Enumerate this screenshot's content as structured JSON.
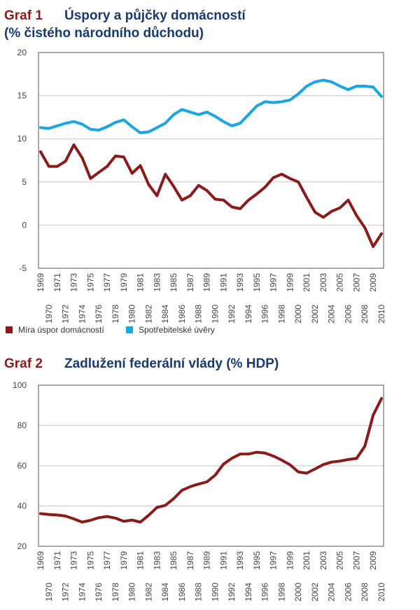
{
  "chart_data": [
    {
      "type": "line",
      "number": "Graf 1",
      "title": "Úspory a půjčky domácností",
      "subtitle": "(% čistého národního důchodu)",
      "ylim": [
        -5,
        20
      ],
      "yticks": [
        -5,
        0,
        5,
        10,
        15,
        20
      ],
      "grid": true,
      "x": [
        1969,
        1970,
        1971,
        1972,
        1973,
        1974,
        1975,
        1976,
        1977,
        1978,
        1979,
        1980,
        1981,
        1982,
        1983,
        1984,
        1985,
        1986,
        1987,
        1988,
        1989,
        1990,
        1991,
        1992,
        1993,
        1994,
        1995,
        1996,
        1997,
        1998,
        1999,
        2000,
        2001,
        2002,
        2003,
        2004,
        2005,
        2006,
        2007,
        2008,
        2009,
        2010
      ],
      "legend_position": "bottom",
      "series": [
        {
          "name": "Míra úspor domácností",
          "color": "#8a1b1b",
          "values": [
            8.5,
            6.8,
            6.8,
            7.4,
            9.3,
            7.8,
            5.4,
            6.1,
            6.8,
            8.0,
            7.9,
            6.0,
            6.9,
            4.7,
            3.4,
            5.9,
            4.5,
            2.9,
            3.4,
            4.6,
            4.0,
            3.0,
            2.9,
            2.1,
            1.9,
            2.9,
            3.6,
            4.4,
            5.5,
            5.9,
            5.4,
            5.0,
            3.2,
            1.5,
            0.9,
            1.6,
            2.0,
            2.9,
            1.1,
            -0.3,
            -2.5,
            -1.0
          ]
        },
        {
          "name": "Spotřebitelské úvěry",
          "color": "#1aa6e0",
          "values": [
            11.3,
            11.2,
            11.5,
            11.8,
            12.0,
            11.7,
            11.1,
            11.0,
            11.4,
            11.9,
            12.2,
            11.4,
            10.7,
            10.8,
            11.3,
            11.8,
            12.8,
            13.4,
            13.1,
            12.8,
            13.1,
            12.6,
            12.0,
            11.5,
            11.8,
            12.8,
            13.8,
            14.3,
            14.2,
            14.3,
            14.5,
            15.2,
            16.1,
            16.6,
            16.8,
            16.6,
            16.1,
            15.7,
            16.1,
            16.1,
            16.0,
            14.9
          ]
        }
      ]
    },
    {
      "type": "line",
      "number": "Graf 2",
      "title": "Zadlužení federální vlády (% HDP)",
      "ylim": [
        20,
        100
      ],
      "yticks": [
        20,
        40,
        60,
        80,
        100
      ],
      "grid": true,
      "x": [
        1969,
        1970,
        1971,
        1972,
        1973,
        1974,
        1975,
        1976,
        1977,
        1978,
        1979,
        1980,
        1981,
        1982,
        1983,
        1984,
        1985,
        1986,
        1987,
        1988,
        1989,
        1990,
        1991,
        1992,
        1993,
        1994,
        1995,
        1996,
        1997,
        1998,
        1999,
        2000,
        2001,
        2002,
        2003,
        2004,
        2005,
        2006,
        2007,
        2008,
        2009,
        2010
      ],
      "series": [
        {
          "color": "#8a1b1b",
          "values": [
            36.2,
            35.8,
            35.5,
            35.0,
            33.6,
            32.0,
            32.9,
            34.2,
            34.8,
            34.0,
            32.4,
            33.0,
            32.0,
            35.4,
            39.3,
            40.3,
            43.6,
            47.8,
            49.6,
            50.9,
            52.0,
            55.3,
            60.8,
            63.7,
            65.8,
            65.8,
            66.7,
            66.3,
            64.8,
            62.8,
            60.5,
            56.9,
            56.3,
            58.4,
            60.6,
            61.8,
            62.3,
            63.1,
            63.6,
            69.7,
            85.1,
            93.4
          ]
        }
      ]
    }
  ]
}
